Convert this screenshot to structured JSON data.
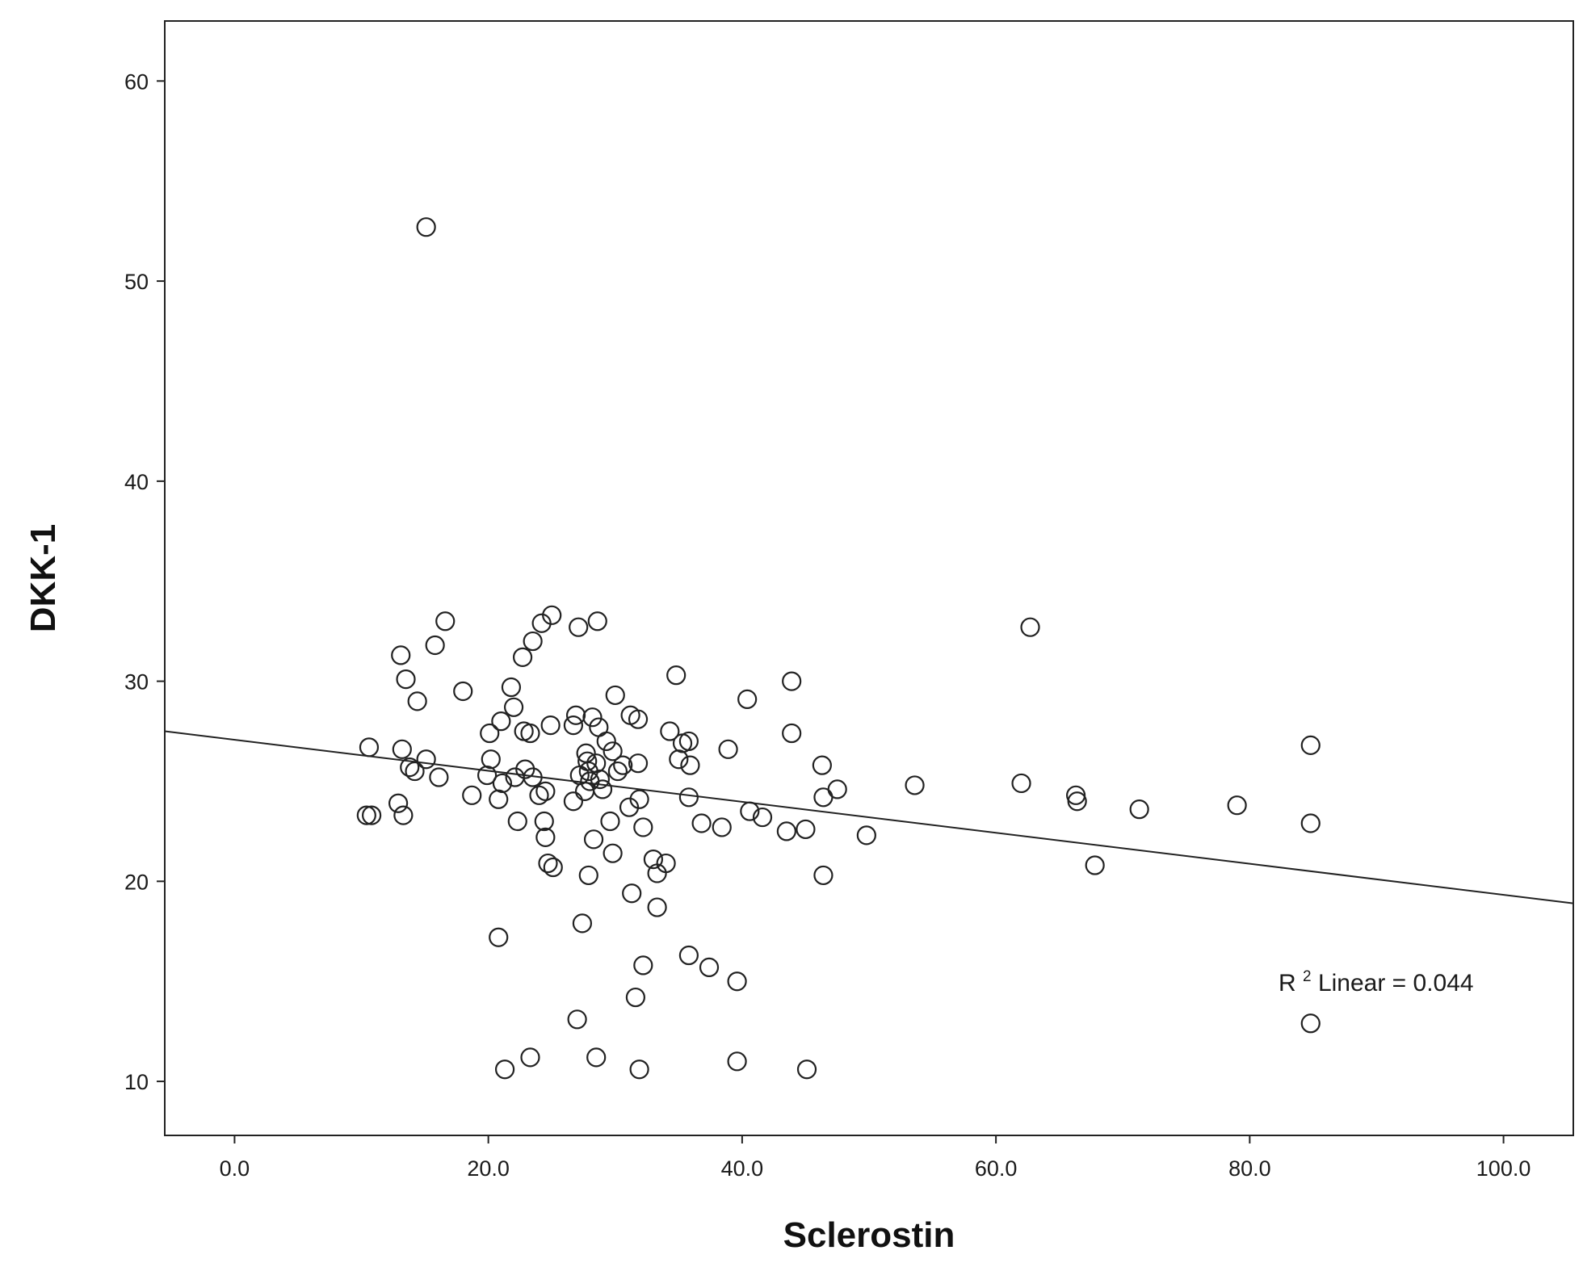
{
  "chart_data": {
    "type": "scatter",
    "title": "",
    "xlabel": "Sclerostin",
    "ylabel": "DKK-1",
    "xlim": [
      -5.5,
      105.5
    ],
    "ylim": [
      7.3,
      63.0
    ],
    "xticks": [
      0,
      20,
      40,
      60,
      80,
      100
    ],
    "xtick_labels": [
      "0.0",
      "20.0",
      "40.0",
      "60.0",
      "80.0",
      "100.0"
    ],
    "yticks": [
      10,
      20,
      30,
      40,
      50,
      60
    ],
    "ytick_labels": [
      "10",
      "20",
      "30",
      "40",
      "50",
      "60"
    ],
    "grid": false,
    "legend": "none",
    "colors": {
      "marker": "#222222",
      "line": "#222222",
      "frame": "#222222",
      "text": "#1a1a1a"
    },
    "fit_line": {
      "type": "linear",
      "x": [
        -5.5,
        105.5
      ],
      "y": [
        27.5,
        18.9
      ]
    },
    "annotation": {
      "prefix": "R",
      "superscript": "2",
      "suffix": " Linear = 0.044",
      "position": "bottom-right"
    },
    "points": [
      [
        15.1,
        52.7
      ],
      [
        10.4,
        23.3
      ],
      [
        10.8,
        23.3
      ],
      [
        10.6,
        26.7
      ],
      [
        13.1,
        31.3
      ],
      [
        13.5,
        30.1
      ],
      [
        14.4,
        29.0
      ],
      [
        15.8,
        31.8
      ],
      [
        16.6,
        33.0
      ],
      [
        12.9,
        23.9
      ],
      [
        13.3,
        23.3
      ],
      [
        13.2,
        26.6
      ],
      [
        13.8,
        25.7
      ],
      [
        14.2,
        25.5
      ],
      [
        15.1,
        26.1
      ],
      [
        16.1,
        25.2
      ],
      [
        18.7,
        24.3
      ],
      [
        18.0,
        29.5
      ],
      [
        19.9,
        25.3
      ],
      [
        20.1,
        27.4
      ],
      [
        20.2,
        26.1
      ],
      [
        20.8,
        24.1
      ],
      [
        21.1,
        24.9
      ],
      [
        21.0,
        28.0
      ],
      [
        21.8,
        29.7
      ],
      [
        22.0,
        28.7
      ],
      [
        22.1,
        25.2
      ],
      [
        22.3,
        23.0
      ],
      [
        22.8,
        27.5
      ],
      [
        22.9,
        25.6
      ],
      [
        23.3,
        27.4
      ],
      [
        23.5,
        25.2
      ],
      [
        24.0,
        24.3
      ],
      [
        24.5,
        24.5
      ],
      [
        22.7,
        31.2
      ],
      [
        23.5,
        32.0
      ],
      [
        24.2,
        32.9
      ],
      [
        25.0,
        33.3
      ],
      [
        24.9,
        27.8
      ],
      [
        24.4,
        23.0
      ],
      [
        24.5,
        22.2
      ],
      [
        24.7,
        20.9
      ],
      [
        25.1,
        20.7
      ],
      [
        26.7,
        27.8
      ],
      [
        26.9,
        28.3
      ],
      [
        27.1,
        32.7
      ],
      [
        27.2,
        25.3
      ],
      [
        26.7,
        24.0
      ],
      [
        27.7,
        26.4
      ],
      [
        27.8,
        26.0
      ],
      [
        27.9,
        25.5
      ],
      [
        28.0,
        25.0
      ],
      [
        27.6,
        24.5
      ],
      [
        28.2,
        28.2
      ],
      [
        28.7,
        27.7
      ],
      [
        28.6,
        33.0
      ],
      [
        28.5,
        25.9
      ],
      [
        28.8,
        25.1
      ],
      [
        29.0,
        24.6
      ],
      [
        29.3,
        27.0
      ],
      [
        29.8,
        26.5
      ],
      [
        30.0,
        29.3
      ],
      [
        30.2,
        25.5
      ],
      [
        30.6,
        25.8
      ],
      [
        29.6,
        23.0
      ],
      [
        29.8,
        21.4
      ],
      [
        28.3,
        22.1
      ],
      [
        27.9,
        20.3
      ],
      [
        31.2,
        28.3
      ],
      [
        31.8,
        28.1
      ],
      [
        31.8,
        25.9
      ],
      [
        31.9,
        24.1
      ],
      [
        31.1,
        23.7
      ],
      [
        32.2,
        22.7
      ],
      [
        31.3,
        19.4
      ],
      [
        33.0,
        21.1
      ],
      [
        33.3,
        20.4
      ],
      [
        34.0,
        20.9
      ],
      [
        33.3,
        18.7
      ],
      [
        34.3,
        27.5
      ],
      [
        34.8,
        30.3
      ],
      [
        35.3,
        26.9
      ],
      [
        35.0,
        26.1
      ],
      [
        35.8,
        27.0
      ],
      [
        35.9,
        25.8
      ],
      [
        35.8,
        24.2
      ],
      [
        36.8,
        22.9
      ],
      [
        38.4,
        22.7
      ],
      [
        38.9,
        26.6
      ],
      [
        40.4,
        29.1
      ],
      [
        40.6,
        23.5
      ],
      [
        41.6,
        23.2
      ],
      [
        43.5,
        22.5
      ],
      [
        43.9,
        27.4
      ],
      [
        43.9,
        30.0
      ],
      [
        45.0,
        22.6
      ],
      [
        46.3,
        25.8
      ],
      [
        46.4,
        24.2
      ],
      [
        46.4,
        20.3
      ],
      [
        47.5,
        24.6
      ],
      [
        49.8,
        22.3
      ],
      [
        53.6,
        24.8
      ],
      [
        62.0,
        24.9
      ],
      [
        62.7,
        32.7
      ],
      [
        66.3,
        24.3
      ],
      [
        66.4,
        24.0
      ],
      [
        67.8,
        20.8
      ],
      [
        71.3,
        23.6
      ],
      [
        79.0,
        23.8
      ],
      [
        84.8,
        26.8
      ],
      [
        84.8,
        22.9
      ],
      [
        84.8,
        12.9
      ],
      [
        20.8,
        17.2
      ],
      [
        27.4,
        17.9
      ],
      [
        21.3,
        10.6
      ],
      [
        23.3,
        11.2
      ],
      [
        27.0,
        13.1
      ],
      [
        28.5,
        11.2
      ],
      [
        31.6,
        14.2
      ],
      [
        31.9,
        10.6
      ],
      [
        32.2,
        15.8
      ],
      [
        35.8,
        16.3
      ],
      [
        37.4,
        15.7
      ],
      [
        39.6,
        15.0
      ],
      [
        39.6,
        11.0
      ],
      [
        45.1,
        10.6
      ]
    ]
  }
}
